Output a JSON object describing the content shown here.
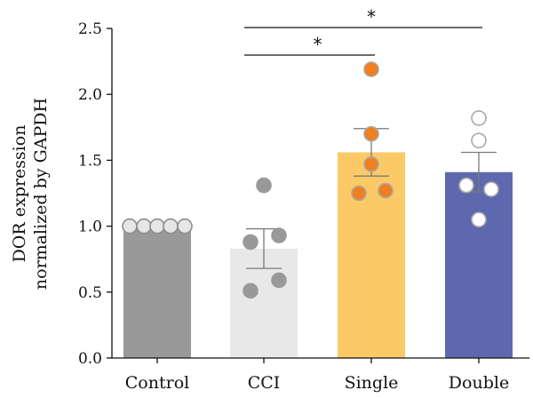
{
  "chart_data": {
    "type": "bar",
    "title": "",
    "xlabel": "",
    "ylabel_lines": [
      "DOR expression",
      "normalized by GAPDH"
    ],
    "categories": [
      "Control",
      "CCI",
      "Single",
      "Double"
    ],
    "values": [
      1.0,
      0.83,
      1.56,
      1.41
    ],
    "sem": [
      0.0,
      0.15,
      0.18,
      0.15
    ],
    "ylim": [
      0.0,
      2.5
    ],
    "yticks": [
      0.0,
      0.5,
      1.0,
      1.5,
      2.0,
      2.5
    ],
    "ytick_labels": [
      "0.0",
      "0.5",
      "1.0",
      "1.5",
      "2.0",
      "2.5"
    ],
    "grid": false,
    "legend": "none",
    "bar_colors": [
      "#999999",
      "#e8e8e8",
      "#fbc965",
      "#5e68ae"
    ],
    "points": [
      [
        1.0,
        1.0,
        1.0,
        1.0,
        1.0
      ],
      [
        1.31,
        0.93,
        0.88,
        0.59,
        0.51
      ],
      [
        2.19,
        1.7,
        1.47,
        1.27,
        1.25
      ],
      [
        1.82,
        1.65,
        1.31,
        1.28,
        1.05
      ]
    ],
    "point_styles": [
      {
        "fill": "#e6e6e6",
        "stroke": "#8c8c8c"
      },
      {
        "fill": "#999999",
        "stroke": "#999999"
      },
      {
        "fill": "#f07f1f",
        "stroke": "#a9a9a9"
      },
      {
        "fill": "#ffffff",
        "stroke": "#a9a9a9"
      }
    ],
    "significance": [
      {
        "from": "CCI",
        "to": "Single",
        "label": "*"
      },
      {
        "from": "CCI",
        "to": "Double",
        "label": "*"
      }
    ]
  }
}
